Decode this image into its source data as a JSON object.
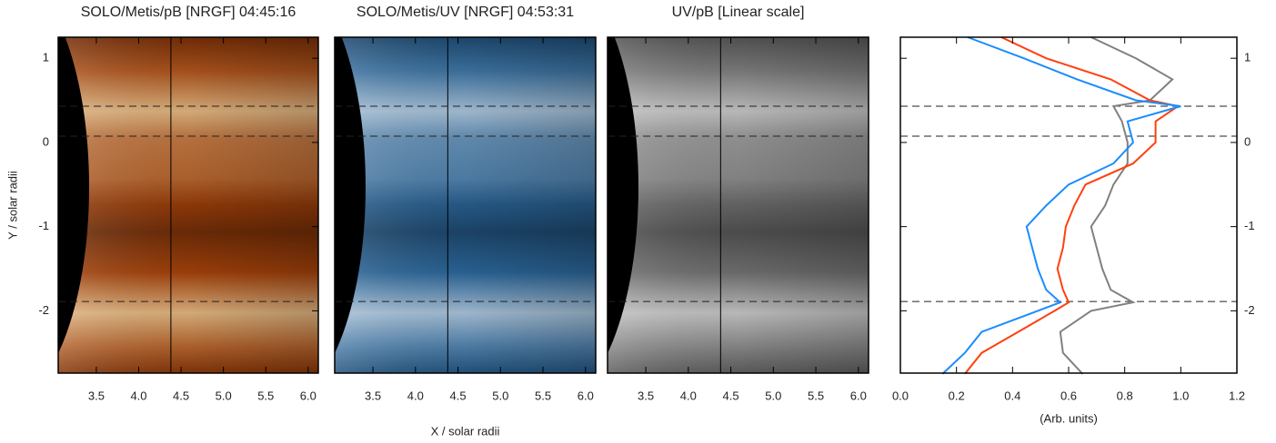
{
  "chart_data": [
    {
      "type": "image",
      "title": "SOLO/Metis/pB [NRGF] 04:45:16",
      "colormap": [
        "#0a0200",
        "#a0400a",
        "#fff2c0"
      ],
      "xlim": [
        3.05,
        6.12
      ],
      "ylim": [
        -2.74,
        1.25
      ],
      "xticks": [
        3.5,
        {
          "value": 4,
          "label": "4.0"
        },
        4.5,
        {
          "value": 5,
          "label": "5.0"
        },
        5.5,
        {
          "value": 6,
          "label": "6.0"
        }
      ],
      "yticks": [
        1,
        0,
        -1,
        -2
      ],
      "ylabel": "Y / solar radii",
      "hlines": [
        0.43,
        0.075,
        -1.89
      ],
      "vline": 4.38
    },
    {
      "type": "image",
      "title": "SOLO/Metis/UV [NRGF] 04:53:31",
      "colormap": [
        "#000814",
        "#2a6496",
        "#eaf2fa"
      ],
      "xlim": [
        3.05,
        6.12
      ],
      "ylim": [
        -2.74,
        1.25
      ],
      "xticks": [
        3.5,
        {
          "value": 4,
          "label": "4.0"
        },
        4.5,
        {
          "value": 5,
          "label": "5.0"
        },
        5.5,
        {
          "value": 6,
          "label": "6.0"
        }
      ],
      "xlabel": "X / solar radii",
      "hlines": [
        0.43,
        0.075,
        -1.89
      ],
      "vline": 4.38
    },
    {
      "type": "image",
      "title": "UV/pB [Linear scale]",
      "colormap": [
        "#141414",
        "#6e6e6e",
        "#f0f0f0"
      ],
      "xlim": [
        3.05,
        6.12
      ],
      "ylim": [
        -2.74,
        1.25
      ],
      "xticks": [
        3.5,
        {
          "value": 4,
          "label": "4.0"
        },
        4.5,
        {
          "value": 5,
          "label": "5.0"
        },
        5.5,
        {
          "value": 6,
          "label": "6.0"
        }
      ],
      "hlines": [
        0.43,
        0.075,
        -1.89
      ],
      "vline": 4.38
    },
    {
      "type": "line",
      "xlabel": "(Arb. units)",
      "xlim": [
        0,
        1.2
      ],
      "xticks": [
        {
          "value": 0,
          "label": "0.0"
        },
        0.2,
        0.4,
        0.6,
        0.8,
        {
          "value": 1,
          "label": "1.0"
        },
        1.2
      ],
      "ylim": [
        -2.74,
        1.25
      ],
      "yticks": [
        1,
        0,
        -1,
        -2
      ],
      "hlines": [
        0.43,
        0.075,
        -1.89
      ],
      "y": [
        1.25,
        1.0,
        0.75,
        0.5,
        0.43,
        0.25,
        0,
        -0.25,
        -0.5,
        -0.75,
        -1,
        -1.25,
        -1.5,
        -1.75,
        -1.9,
        -2,
        -2.25,
        -2.5,
        -2.75
      ],
      "series": [
        {
          "color": "#808080",
          "values": [
            0.68,
            0.84,
            0.97,
            0.89,
            0.76,
            0.79,
            0.81,
            0.81,
            0.76,
            0.73,
            0.68,
            0.7,
            0.72,
            0.75,
            0.83,
            0.68,
            0.57,
            0.58,
            0.65
          ]
        },
        {
          "color": "#ff4010",
          "values": [
            0.36,
            0.52,
            0.75,
            0.89,
            0.99,
            0.91,
            0.91,
            0.83,
            0.66,
            0.62,
            0.59,
            0.58,
            0.56,
            0.58,
            0.6,
            0.55,
            0.42,
            0.29,
            0.23
          ]
        },
        {
          "color": "#1a8cff",
          "values": [
            0.24,
            0.44,
            0.63,
            0.84,
            1.0,
            0.81,
            0.83,
            0.76,
            0.6,
            0.52,
            0.45,
            0.47,
            0.49,
            0.52,
            0.57,
            0.49,
            0.29,
            0.23,
            0.15
          ]
        }
      ]
    }
  ]
}
